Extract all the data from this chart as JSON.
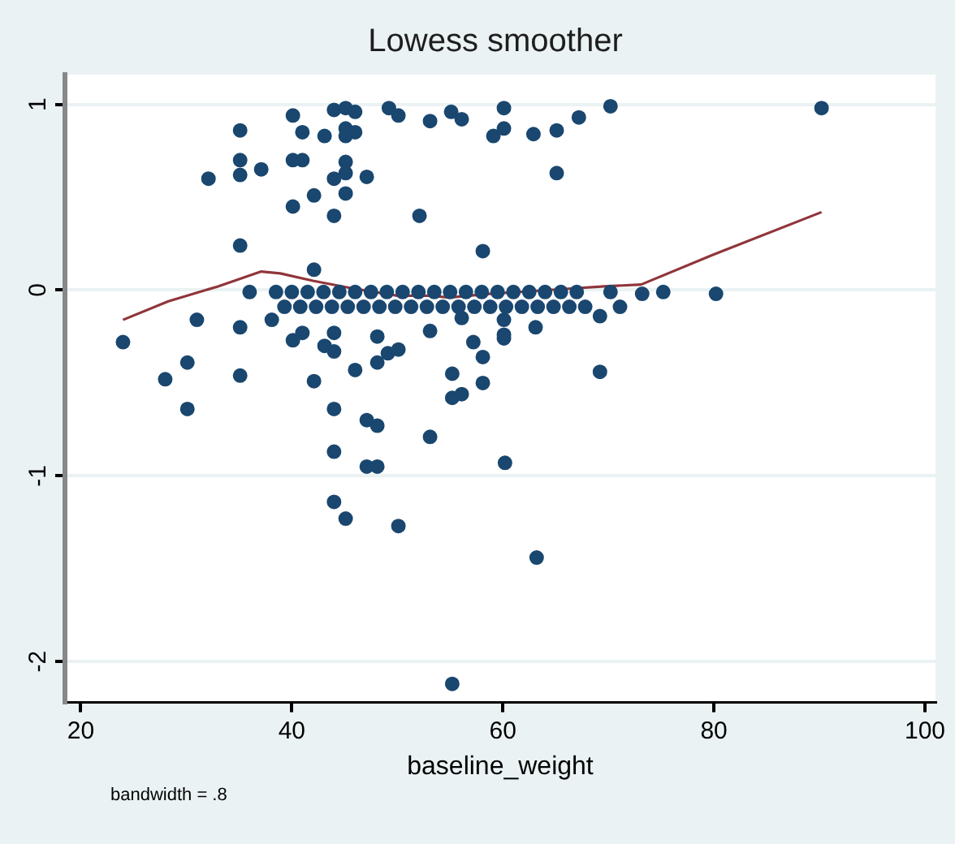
{
  "chart_data": {
    "type": "scatter",
    "title": "Lowess smoother",
    "xlabel": "baseline_weight",
    "annotations": [
      "bandwidth = .8"
    ],
    "xlim": [
      18.5,
      101
    ],
    "xticks": [
      20,
      40,
      60,
      80,
      100
    ],
    "ylim": [
      -2.22,
      1.16
    ],
    "yticks": [
      -2,
      -1,
      0,
      1
    ],
    "grid": "y",
    "legend": false,
    "series": [
      {
        "type": "scatter",
        "color": "#1a476f",
        "marker": "circle",
        "x": [
          40.1,
          44,
          45.1,
          46,
          49.2,
          50.1,
          53.1,
          55.1,
          56.1,
          60.1,
          60.1,
          59.1,
          62.9,
          35.1,
          41,
          43.1,
          45.1,
          46,
          45.1,
          35.1,
          35.1,
          40.1,
          41,
          37.1,
          32.1,
          45.1,
          45.1,
          44,
          47.1,
          45.1,
          42.1,
          40.1,
          44,
          52.1,
          35.1,
          58.1,
          42.1,
          65.1,
          67.2,
          70.2,
          90.2,
          65.1,
          73.2,
          75.2,
          80.2,
          70.2,
          71.1,
          69.2,
          24,
          31,
          35.1,
          36,
          38.1,
          28,
          30.1,
          30.1,
          35.1,
          40.1,
          41,
          42.1,
          43.1,
          44,
          44,
          44,
          44,
          46,
          48.1,
          48.1,
          47.1,
          48.1,
          49.1,
          50.1,
          53.1,
          53.1,
          55.2,
          56.1,
          55.2,
          58.1,
          58.1,
          57.2,
          56.1,
          60.1,
          60.1,
          69.2,
          63.1,
          60.1,
          47.1,
          48.1,
          60.2,
          44,
          45.1,
          50.1,
          63.2,
          55.2,
          38.5,
          40,
          41.5,
          43,
          44.5,
          46,
          47.5,
          49,
          50.5,
          52,
          53.5,
          55,
          56.5,
          58,
          59.5,
          61,
          62.5,
          64,
          65.5,
          67,
          39.3,
          40.8,
          42.3,
          43.8,
          45.3,
          46.8,
          48.3,
          49.8,
          51.3,
          52.8,
          54.3,
          55.8,
          57.3,
          58.8,
          60.3,
          61.8,
          63.3,
          64.8,
          66.3,
          67.8
        ],
        "values": [
          0.94,
          0.97,
          0.98,
          0.96,
          0.98,
          0.94,
          0.91,
          0.96,
          0.92,
          0.98,
          0.87,
          0.83,
          0.84,
          0.86,
          0.85,
          0.83,
          0.87,
          0.85,
          0.83,
          0.7,
          0.62,
          0.7,
          0.7,
          0.65,
          0.6,
          0.69,
          0.63,
          0.6,
          0.61,
          0.52,
          0.51,
          0.45,
          0.4,
          0.4,
          0.24,
          0.21,
          0.11,
          0.86,
          0.93,
          0.99,
          0.98,
          0.63,
          -0.02,
          -0.01,
          -0.02,
          -0.01,
          -0.09,
          -0.14,
          -0.28,
          -0.16,
          -0.2,
          -0.01,
          -0.16,
          -0.48,
          -0.39,
          -0.64,
          -0.46,
          -0.27,
          -0.23,
          -0.49,
          -0.3,
          -0.23,
          -0.33,
          -0.64,
          -0.87,
          -0.43,
          -0.39,
          -0.25,
          -0.7,
          -0.73,
          -0.34,
          -0.32,
          -0.79,
          -0.22,
          -0.45,
          -0.56,
          -0.58,
          -0.36,
          -0.5,
          -0.28,
          -0.15,
          -0.16,
          -0.24,
          -0.44,
          -0.2,
          -0.26,
          -0.95,
          -0.95,
          -0.93,
          -1.14,
          -1.23,
          -1.27,
          -1.44,
          -2.12,
          -0.01,
          -0.01,
          -0.01,
          -0.01,
          -0.01,
          -0.01,
          -0.01,
          -0.01,
          -0.01,
          -0.01,
          -0.01,
          -0.01,
          -0.01,
          -0.01,
          -0.01,
          -0.01,
          -0.01,
          -0.01,
          -0.01,
          -0.01,
          -0.09,
          -0.09,
          -0.09,
          -0.09,
          -0.09,
          -0.09,
          -0.09,
          -0.09,
          -0.09,
          -0.09,
          -0.09,
          -0.09,
          -0.09,
          -0.09,
          -0.09,
          -0.09,
          -0.09,
          -0.09,
          -0.09,
          -0.09
        ]
      },
      {
        "type": "line",
        "color": "#90353b",
        "marker": "none",
        "line_style": "solid",
        "x": [
          24,
          28.3,
          33,
          37.1,
          38.9,
          42,
          45.7,
          50,
          53.1,
          54.9,
          58.7,
          64.2,
          69.6,
          73.1,
          79.9,
          90.2
        ],
        "values": [
          -0.16,
          -0.06,
          0.02,
          0.1,
          0.09,
          0.05,
          0.01,
          -0.03,
          -0.03,
          -0.04,
          -0.02,
          0,
          0.02,
          0.03,
          0.19,
          0.42
        ]
      }
    ]
  }
}
